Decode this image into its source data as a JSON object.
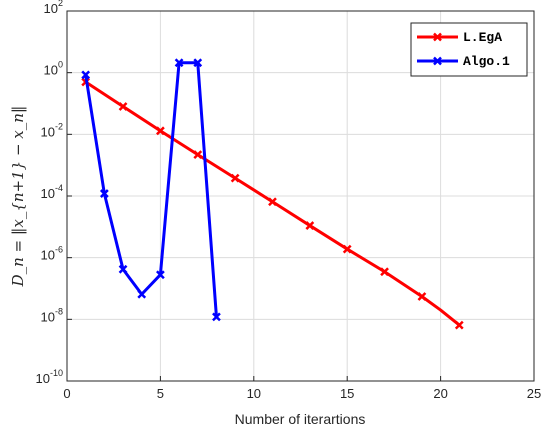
{
  "chart_data": {
    "type": "line",
    "xlabel": "Number of iterartions",
    "ylabel": "D_n = ‖x_{n+1} − x_n‖",
    "xlim": [
      0,
      25
    ],
    "ylim": [
      1e-10,
      100
    ],
    "y_scale": "log",
    "grid": true,
    "legend_position": "top-right",
    "x_ticks": [
      0,
      5,
      10,
      15,
      20,
      25
    ],
    "y_tick_exponents": [
      -10,
      -8,
      -6,
      -4,
      -2,
      0,
      2
    ],
    "series": [
      {
        "name": "L.EgA",
        "color": "#ff0000",
        "x": [
          1,
          3,
          5,
          7,
          9,
          11,
          13,
          15,
          17,
          19,
          20,
          21
        ],
        "y": [
          0.5,
          0.08,
          0.013,
          0.0022,
          0.00038,
          6.5e-05,
          1.1e-05,
          1.9e-06,
          3.5e-07,
          5.5e-08,
          2e-08,
          6.5e-09
        ],
        "markers": [
          true,
          true,
          true,
          true,
          true,
          true,
          true,
          true,
          true,
          true,
          false,
          true
        ]
      },
      {
        "name": "Algo.1",
        "color": "#0000ff",
        "x": [
          1,
          2,
          3,
          4,
          5,
          6,
          7,
          8
        ],
        "y": [
          0.85,
          0.00012,
          4.2e-07,
          6.5e-08,
          2.8e-07,
          2.1,
          2.1,
          1.2e-08
        ],
        "markers": [
          true,
          true,
          true,
          true,
          true,
          true,
          true,
          true
        ]
      }
    ]
  }
}
